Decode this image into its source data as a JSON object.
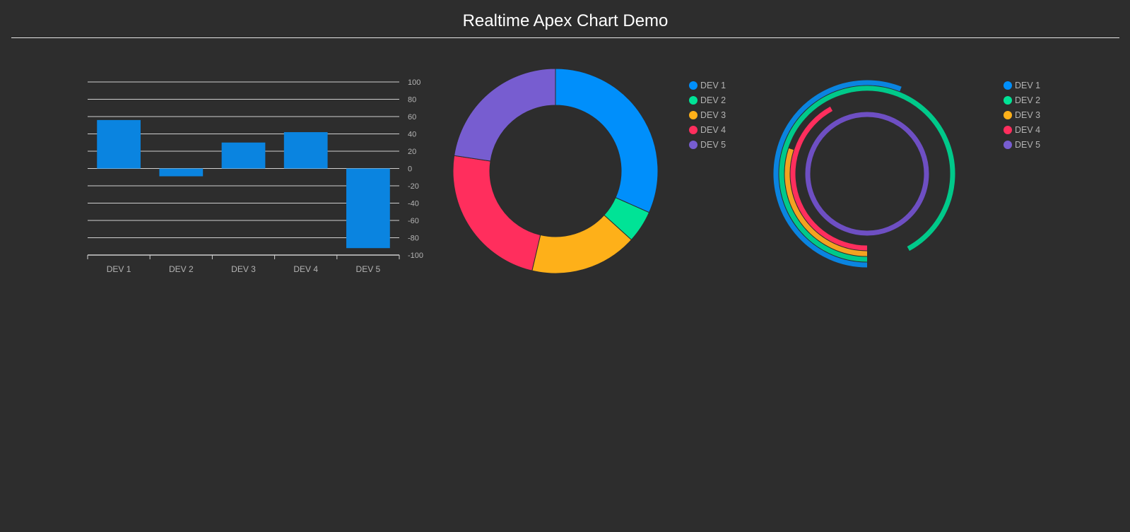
{
  "page": {
    "title": "Realtime Apex Chart Demo"
  },
  "colors": {
    "background": "#2d2d2d",
    "bar": "#0a84e0",
    "grid": "#cfcfcf",
    "tick_text": "#b3b3b3"
  },
  "chart_data": [
    {
      "type": "bar",
      "categories": [
        "DEV 1",
        "DEV 2",
        "DEV 3",
        "DEV 4",
        "DEV 5"
      ],
      "values": [
        56,
        -9,
        30,
        42,
        -92
      ],
      "ylim": [
        -100,
        100
      ],
      "y_ticks": [
        "100",
        "80",
        "60",
        "40",
        "20",
        "0",
        "-20",
        "-40",
        "-60",
        "-80",
        "-100"
      ],
      "y_axis_side": "right",
      "grid": true,
      "color": "#0a84e0"
    },
    {
      "type": "pie",
      "style": "donut",
      "labels": [
        "DEV 1",
        "DEV 2",
        "DEV 3",
        "DEV 4",
        "DEV 5"
      ],
      "values": [
        56,
        9,
        30,
        42,
        40
      ],
      "colors": [
        "#008ffb",
        "#00e396",
        "#feb019",
        "#ff2e5d",
        "#775dd0"
      ],
      "legend": "right"
    },
    {
      "type": "radialBar",
      "labels": [
        "DEV 1",
        "DEV 2",
        "DEV 3",
        "DEV 4",
        "DEV 5"
      ],
      "values": [
        56,
        92,
        30,
        42,
        100
      ],
      "colors": [
        "#0a84e0",
        "#00c98a",
        "#f3a221",
        "#ff2e5d",
        "#6e4fc3"
      ],
      "legend_colors": [
        "#008ffb",
        "#00e396",
        "#feb019",
        "#ff2e5d",
        "#775dd0"
      ],
      "legend": "right"
    }
  ]
}
